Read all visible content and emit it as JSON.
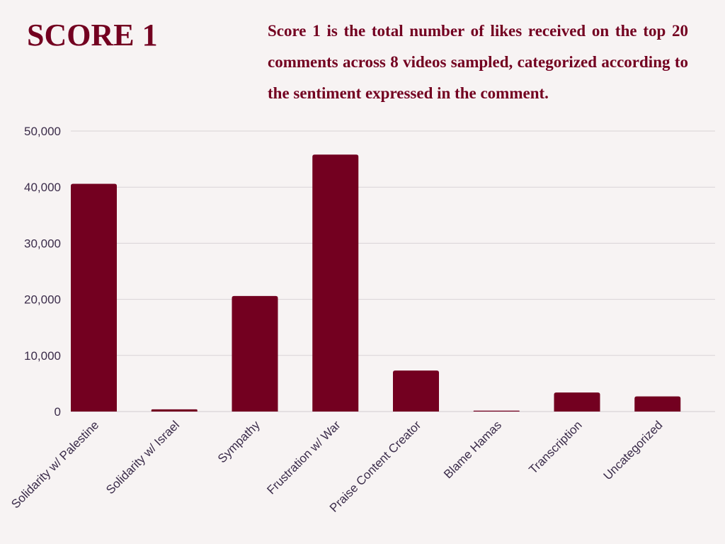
{
  "header": {
    "title": "SCORE 1",
    "description": "Score 1 is the total number of likes received on the top 20 comments across 8 videos sampled, categorized according to the sentiment expressed in the comment."
  },
  "colors": {
    "background": "#f7f3f3",
    "bar": "#730020",
    "text_title": "#730020",
    "tick_text": "#3b2c4a",
    "gridline": "#d9d3d6"
  },
  "chart_data": {
    "type": "bar",
    "title": "SCORE 1",
    "xlabel": "",
    "ylabel": "",
    "categories": [
      "Solidarity w/ Palestine",
      "Solidarity w/ Israel",
      "Sympathy",
      "Frustration w/ War",
      "Praise Content Creator",
      "Blame Hamas",
      "Transcription",
      "Uncategorized"
    ],
    "values": [
      40600,
      400,
      20600,
      45800,
      7300,
      150,
      3400,
      2700
    ],
    "ylim": [
      0,
      50000
    ],
    "yticks": [
      0,
      10000,
      20000,
      30000,
      40000,
      50000
    ],
    "ytick_labels": [
      "0",
      "10,000",
      "20,000",
      "30,000",
      "40,000",
      "50,000"
    ],
    "grid": true,
    "legend": "none"
  }
}
